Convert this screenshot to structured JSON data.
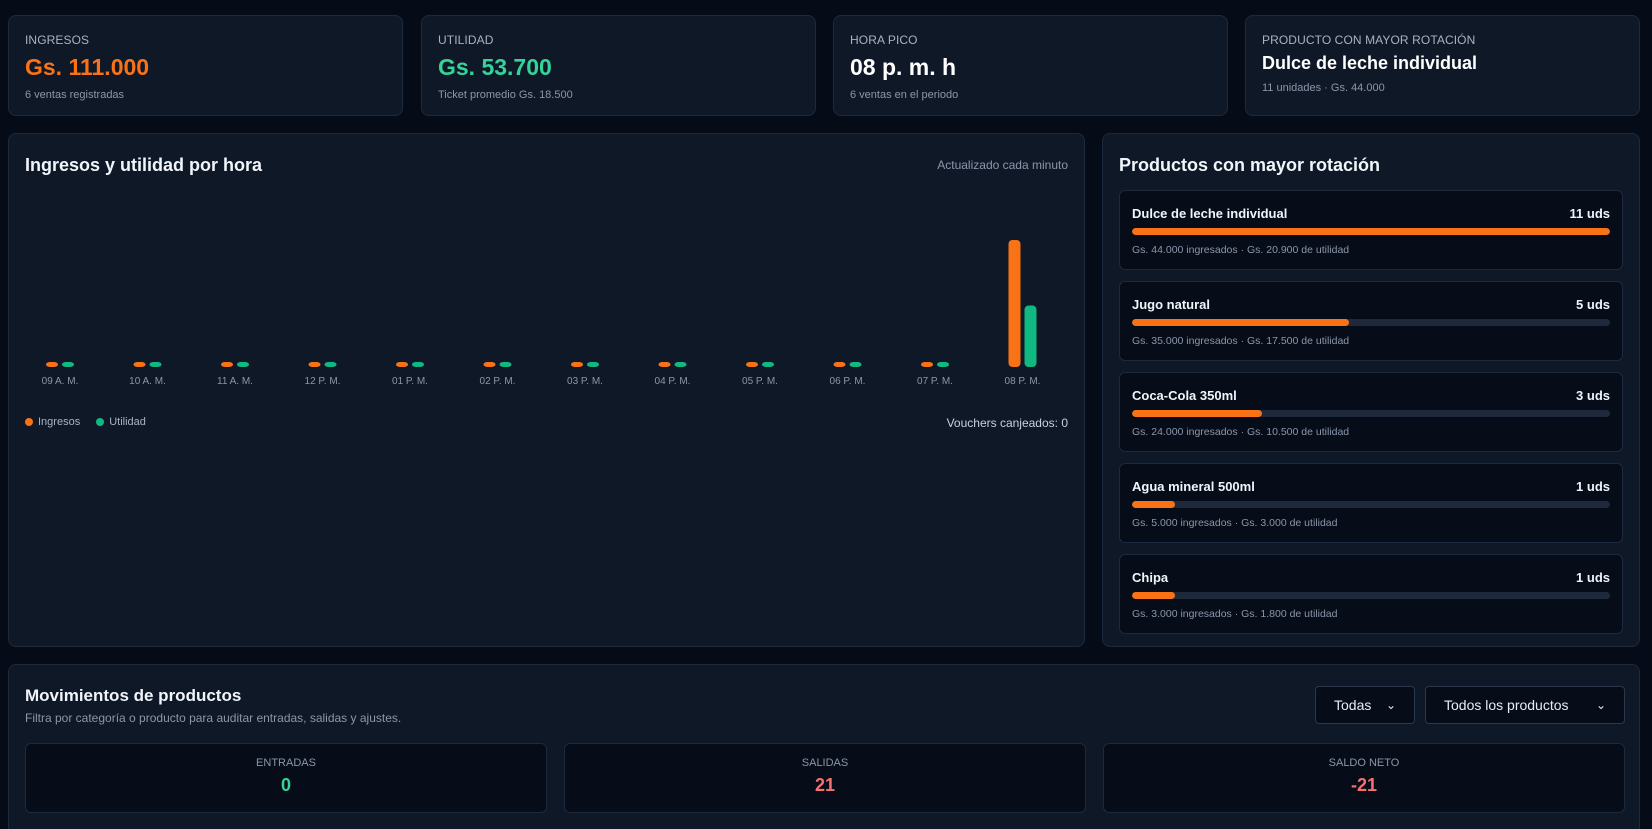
{
  "kpis": [
    {
      "label": "INGRESOS",
      "value": "Gs. 111.000",
      "sub": "6 ventas registradas",
      "color": "#f97316"
    },
    {
      "label": "UTILIDAD",
      "value": "Gs. 53.700",
      "sub": "Ticket promedio Gs. 18.500",
      "color": "#34d399"
    },
    {
      "label": "HORA PICO",
      "value": "08 p. m. h",
      "sub": "6 ventas en el periodo",
      "color": "#ffffff"
    },
    {
      "label": "PRODUCTO CON MAYOR ROTACIÓN",
      "value": "Dulce de leche individual",
      "sub": "11 unidades · Gs. 44.000",
      "color": "#ffffff"
    }
  ],
  "chart": {
    "title": "Ingresos y utilidad por hora",
    "updated": "Actualizado cada minuto",
    "legend": {
      "ingresos": "Ingresos",
      "utilidad": "Utilidad"
    },
    "vouchers": "Vouchers canjeados: 0",
    "colors": {
      "ingresos": "#f97316",
      "utilidad": "#10b981"
    }
  },
  "chart_data": {
    "type": "bar",
    "categories": [
      "09 A. M.",
      "10 A. M.",
      "11 A. M.",
      "12 P. M.",
      "01 P. M.",
      "02 P. M.",
      "03 P. M.",
      "04 P. M.",
      "05 P. M.",
      "06 P. M.",
      "07 P. M.",
      "08 P. M."
    ],
    "series": [
      {
        "name": "Ingresos",
        "values": [
          0,
          0,
          0,
          0,
          0,
          0,
          0,
          0,
          0,
          0,
          0,
          111000
        ]
      },
      {
        "name": "Utilidad",
        "values": [
          0,
          0,
          0,
          0,
          0,
          0,
          0,
          0,
          0,
          0,
          0,
          53700
        ]
      }
    ],
    "legend_position": "bottom-left",
    "grid": false
  },
  "top_products": {
    "title": "Productos con mayor rotación",
    "items": [
      {
        "name": "Dulce de leche individual",
        "qty": "11 uds",
        "units": 11,
        "detail": "Gs. 44.000 ingresados · Gs. 20.900 de utilidad"
      },
      {
        "name": "Jugo natural",
        "qty": "5 uds",
        "units": 5,
        "detail": "Gs. 35.000 ingresados · Gs. 17.500 de utilidad"
      },
      {
        "name": "Coca-Cola 350ml",
        "qty": "3 uds",
        "units": 3,
        "detail": "Gs. 24.000 ingresados · Gs. 10.500 de utilidad"
      },
      {
        "name": "Agua mineral 500ml",
        "qty": "1 uds",
        "units": 1,
        "detail": "Gs. 5.000 ingresados · Gs. 3.000 de utilidad"
      },
      {
        "name": "Chipa",
        "qty": "1 uds",
        "units": 1,
        "detail": "Gs. 3.000 ingresados · Gs. 1.800 de utilidad"
      }
    ]
  },
  "movements": {
    "title": "Movimientos de productos",
    "desc": "Filtra por categoría o producto para auditar entradas, salidas y ajustes.",
    "category_select": "Todas",
    "product_select": "Todos los productos",
    "stats": [
      {
        "label": "ENTRADAS",
        "value": "0",
        "color": "#34d399"
      },
      {
        "label": "SALIDAS",
        "value": "21",
        "color": "#f87171"
      },
      {
        "label": "SALDO NETO",
        "value": "-21",
        "color": "#f87171"
      }
    ]
  }
}
